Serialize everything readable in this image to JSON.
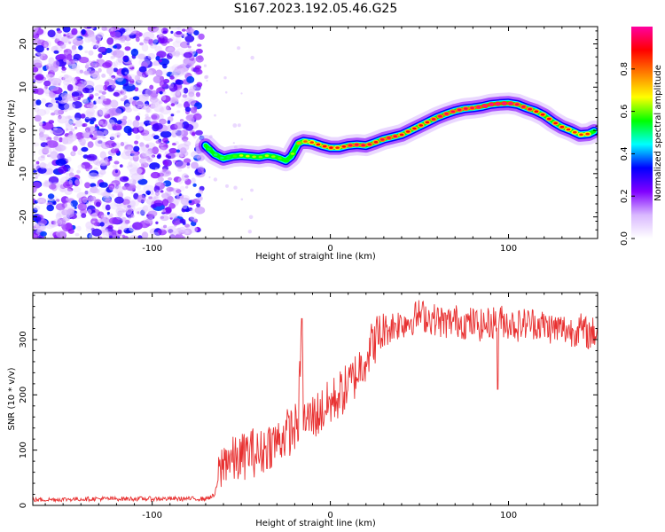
{
  "title": "S167.2023.192.05.46.G25",
  "colors": {
    "signal": "#e83030",
    "noise_purple": "#8a2be2",
    "axis": "#000000",
    "colormap": [
      "#ffffff",
      "#d9b8ff",
      "#8000ff",
      "#0000ff",
      "#00ffff",
      "#00ff00",
      "#ffff00",
      "#ff8000",
      "#ff0000",
      "#ff00a0"
    ]
  },
  "chart_data": [
    {
      "type": "heatmap",
      "title": "S167.2023.192.05.46.G25",
      "xlabel": "Height of straight line (km)",
      "ylabel": "Frequency (Hz)",
      "xlim": [
        -167,
        150
      ],
      "ylim": [
        -25,
        24
      ],
      "x_ticks": [
        -100,
        0,
        100
      ],
      "x_tick_labels": [
        "-100",
        "0",
        "100"
      ],
      "y_ticks": [
        -20,
        -10,
        0,
        10,
        20
      ],
      "y_tick_labels": [
        "-20",
        "-10",
        "0",
        "10",
        "20"
      ],
      "noise_region_x": [
        -167,
        -72
      ],
      "ridge": {
        "x": [
          -70,
          -65,
          -60,
          -55,
          -50,
          -45,
          -40,
          -35,
          -30,
          -25,
          -22,
          -18,
          -15,
          -10,
          -5,
          0,
          5,
          10,
          15,
          20,
          25,
          30,
          35,
          40,
          45,
          50,
          55,
          60,
          65,
          70,
          75,
          80,
          85,
          90,
          95,
          100,
          105,
          110,
          115,
          120,
          125,
          130,
          135,
          140,
          145,
          148
        ],
        "y": [
          -3.5,
          -5.5,
          -6.5,
          -6,
          -5.8,
          -6,
          -6.2,
          -5.8,
          -6.2,
          -7,
          -6,
          -3,
          -2.5,
          -2.8,
          -3.5,
          -4,
          -4,
          -3.5,
          -3.3,
          -3.5,
          -2.8,
          -2,
          -1.5,
          -1,
          0,
          1,
          2,
          3,
          3.8,
          4.5,
          5,
          5.2,
          5.5,
          6,
          6.2,
          6.3,
          6,
          5.2,
          4.5,
          3.5,
          2,
          0.8,
          0,
          -1,
          -0.8,
          -0.2
        ],
        "amplitude": [
          0.5,
          0.45,
          0.45,
          0.5,
          0.6,
          0.6,
          0.55,
          0.6,
          0.55,
          0.5,
          0.55,
          0.7,
          0.75,
          0.8,
          0.85,
          0.85,
          0.8,
          0.9,
          0.9,
          0.9,
          0.85,
          0.9,
          0.9,
          0.85,
          0.85,
          0.85,
          0.85,
          0.9,
          0.9,
          0.9,
          0.9,
          0.9,
          0.95,
          0.95,
          0.95,
          0.95,
          0.9,
          0.9,
          0.85,
          0.85,
          0.85,
          0.85,
          0.8,
          0.8,
          0.8,
          0.8
        ]
      },
      "colorbar": {
        "label": "Normalized spectral amplitude",
        "range": [
          0,
          1
        ],
        "ticks": [
          0.0,
          0.2,
          0.4,
          0.6,
          0.8
        ],
        "tick_labels": [
          "0.0",
          "0.2",
          "0.4",
          "0.6",
          "0.8"
        ]
      }
    },
    {
      "type": "line",
      "xlabel": "Height of straight line (km)",
      "ylabel": "SNR (10 * v/v)",
      "xlim": [
        -167,
        150
      ],
      "ylim": [
        0,
        385
      ],
      "x_ticks": [
        -100,
        0,
        100
      ],
      "x_tick_labels": [
        "-100",
        "0",
        "100"
      ],
      "y_ticks": [
        0,
        100,
        200,
        300
      ],
      "y_tick_labels": [
        "0",
        "100",
        "200",
        "300"
      ],
      "series": [
        {
          "x": [
            -167,
            -150,
            -130,
            -110,
            -90,
            -70,
            -65,
            -62,
            -58,
            -55,
            -50,
            -45,
            -40,
            -35,
            -30,
            -25,
            -20,
            -18,
            -16,
            -15,
            -10,
            -5,
            0,
            5,
            10,
            15,
            20,
            25,
            30,
            35,
            40,
            45,
            50,
            55,
            60,
            65,
            70,
            75,
            80,
            85,
            90,
            95,
            100,
            105,
            110,
            115,
            120,
            125,
            130,
            135,
            140,
            145,
            150
          ],
          "y": [
            10,
            11,
            12,
            12,
            12,
            12,
            18,
            60,
            90,
            80,
            85,
            100,
            90,
            110,
            115,
            130,
            140,
            150,
            330,
            150,
            160,
            170,
            185,
            200,
            215,
            240,
            270,
            300,
            315,
            325,
            330,
            335,
            345,
            340,
            335,
            330,
            335,
            330,
            330,
            325,
            330,
            335,
            330,
            325,
            330,
            330,
            325,
            320,
            320,
            315,
            320,
            310,
            315
          ]
        }
      ]
    }
  ]
}
